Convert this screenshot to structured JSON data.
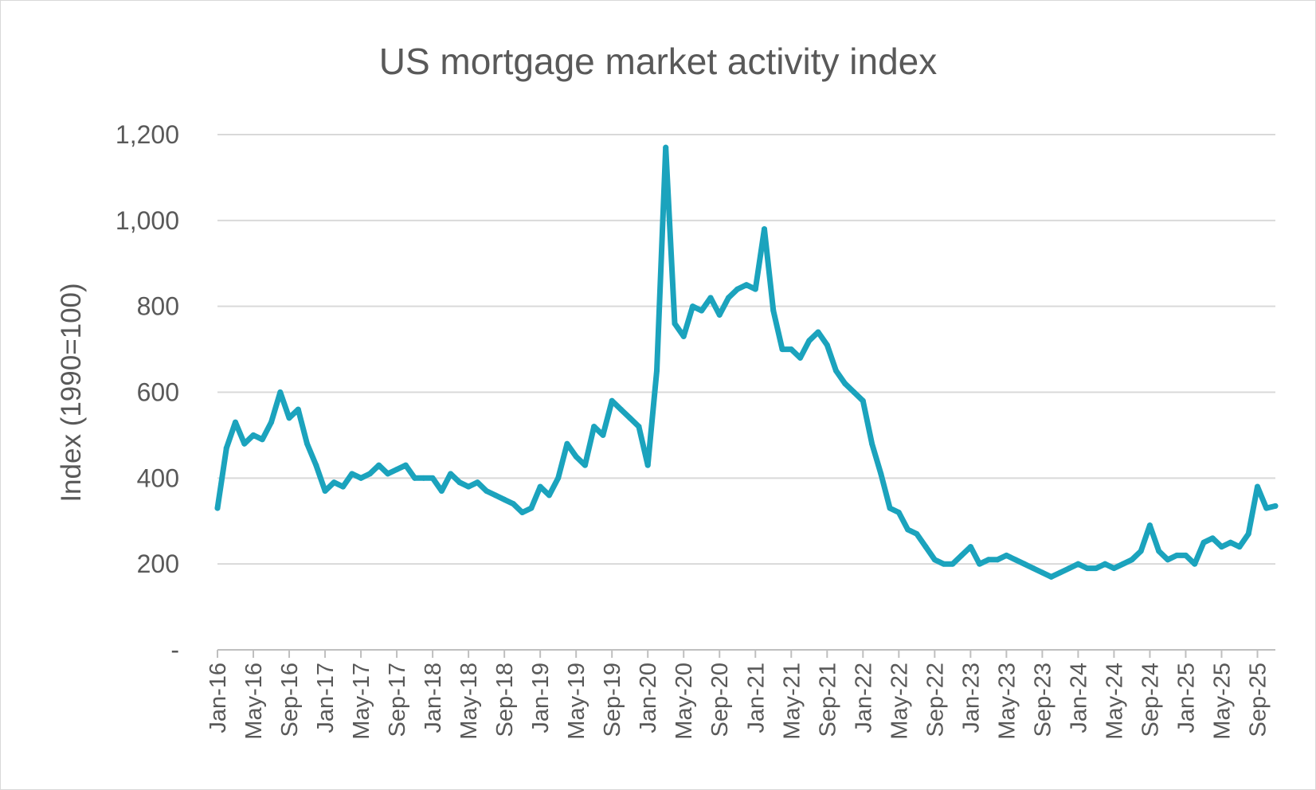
{
  "chart_data": {
    "type": "line",
    "title": "US mortgage market activity index",
    "xlabel": "",
    "ylabel": "Index (1990=100)",
    "ylim": [
      0,
      1200
    ],
    "yticks": [
      {
        "value": 0,
        "label": "-"
      },
      {
        "value": 200,
        "label": "200"
      },
      {
        "value": 400,
        "label": "400"
      },
      {
        "value": 600,
        "label": "600"
      },
      {
        "value": 800,
        "label": "800"
      },
      {
        "value": 1000,
        "label": "1,000"
      },
      {
        "value": 1200,
        "label": "1,200"
      }
    ],
    "xticks": [
      "Jan-16",
      "May-16",
      "Sep-16",
      "Jan-17",
      "May-17",
      "Sep-17",
      "Jan-18",
      "May-18",
      "Sep-18",
      "Jan-19",
      "May-19",
      "Sep-19",
      "Jan-20",
      "May-20",
      "Sep-20",
      "Jan-21",
      "May-21",
      "Sep-21",
      "Jan-22",
      "May-22",
      "Sep-22",
      "Jan-23",
      "May-23",
      "Sep-23",
      "Jan-24",
      "May-24",
      "Sep-24",
      "Jan-25",
      "May-25",
      "Sep-25"
    ],
    "x_range": [
      "2016-01",
      "2025-11"
    ],
    "grid": true,
    "line_color": "#1BA3BD",
    "series": [
      {
        "x": [
          "2016-01",
          "2016-02",
          "2016-03",
          "2016-04",
          "2016-05",
          "2016-06",
          "2016-07",
          "2016-08",
          "2016-09",
          "2016-10",
          "2016-11",
          "2016-12",
          "2017-01",
          "2017-02",
          "2017-03",
          "2017-04",
          "2017-05",
          "2017-06",
          "2017-07",
          "2017-08",
          "2017-09",
          "2017-10",
          "2017-11",
          "2017-12",
          "2018-01",
          "2018-02",
          "2018-03",
          "2018-04",
          "2018-05",
          "2018-06",
          "2018-07",
          "2018-08",
          "2018-09",
          "2018-10",
          "2018-11",
          "2018-12",
          "2019-01",
          "2019-02",
          "2019-03",
          "2019-04",
          "2019-05",
          "2019-06",
          "2019-07",
          "2019-08",
          "2019-09",
          "2019-10",
          "2019-11",
          "2019-12",
          "2020-01",
          "2020-02",
          "2020-03",
          "2020-04",
          "2020-05",
          "2020-06",
          "2020-07",
          "2020-08",
          "2020-09",
          "2020-10",
          "2020-11",
          "2020-12",
          "2021-01",
          "2021-02",
          "2021-03",
          "2021-04",
          "2021-05",
          "2021-06",
          "2021-07",
          "2021-08",
          "2021-09",
          "2021-10",
          "2021-11",
          "2021-12",
          "2022-01",
          "2022-02",
          "2022-03",
          "2022-04",
          "2022-05",
          "2022-06",
          "2022-07",
          "2022-08",
          "2022-09",
          "2022-10",
          "2022-11",
          "2022-12",
          "2023-01",
          "2023-02",
          "2023-03",
          "2023-04",
          "2023-05",
          "2023-06",
          "2023-07",
          "2023-08",
          "2023-09",
          "2023-10",
          "2023-11",
          "2023-12",
          "2024-01",
          "2024-02",
          "2024-03",
          "2024-04",
          "2024-05",
          "2024-06",
          "2024-07",
          "2024-08",
          "2024-09",
          "2024-10",
          "2024-11",
          "2024-12",
          "2025-01",
          "2025-02",
          "2025-03",
          "2025-04",
          "2025-05",
          "2025-06",
          "2025-07",
          "2025-08",
          "2025-09",
          "2025-10",
          "2025-11"
        ],
        "values": [
          330,
          470,
          530,
          480,
          500,
          490,
          530,
          600,
          540,
          560,
          480,
          430,
          370,
          390,
          380,
          410,
          400,
          410,
          430,
          410,
          420,
          430,
          400,
          400,
          400,
          370,
          410,
          390,
          380,
          390,
          370,
          360,
          350,
          340,
          320,
          330,
          380,
          360,
          400,
          480,
          450,
          430,
          520,
          500,
          580,
          560,
          540,
          520,
          430,
          650,
          1170,
          760,
          730,
          800,
          790,
          820,
          780,
          820,
          840,
          850,
          840,
          980,
          790,
          700,
          700,
          680,
          720,
          740,
          710,
          650,
          620,
          600,
          580,
          480,
          410,
          330,
          320,
          280,
          270,
          240,
          210,
          200,
          200,
          220,
          240,
          200,
          210,
          210,
          220,
          210,
          200,
          190,
          180,
          170,
          180,
          190,
          200,
          190,
          190,
          200,
          190,
          200,
          210,
          230,
          290,
          230,
          210,
          220,
          220,
          200,
          250,
          260,
          240,
          250,
          240,
          270,
          380,
          330,
          335
        ]
      }
    ]
  }
}
